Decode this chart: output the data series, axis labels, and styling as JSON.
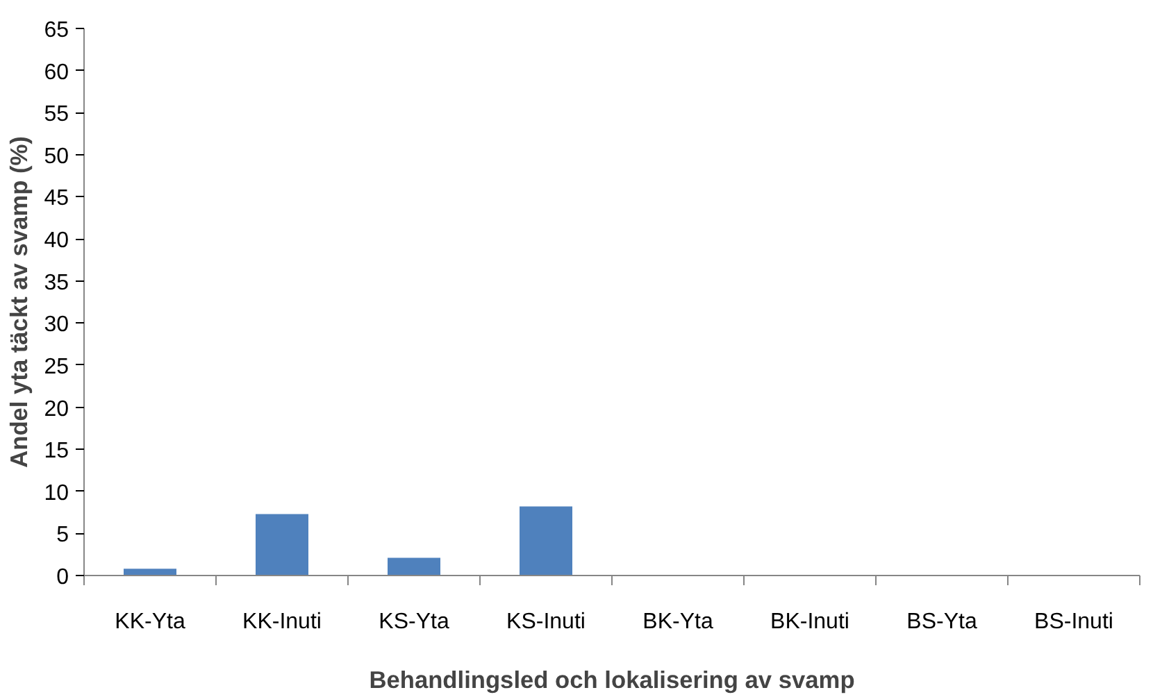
{
  "chart_data": {
    "type": "bar",
    "xlabel": "Behandlingsled och lokalisering av svamp",
    "ylabel": "Andel yta täckt av svamp (%)",
    "categories": [
      "KK-Yta",
      "KK-Inuti",
      "KS-Yta",
      "KS-Inuti",
      "BK-Yta",
      "BK-Inuti",
      "BS-Yta",
      "BS-Inuti"
    ],
    "values": [
      0.8,
      7.3,
      2.1,
      8.2,
      0,
      0,
      0,
      0
    ],
    "color": "#4f81bd",
    "ylim": [
      0,
      65
    ],
    "yticks": [
      0,
      5,
      10,
      15,
      20,
      25,
      30,
      35,
      40,
      45,
      50,
      55,
      60,
      65
    ],
    "grid": false
  }
}
